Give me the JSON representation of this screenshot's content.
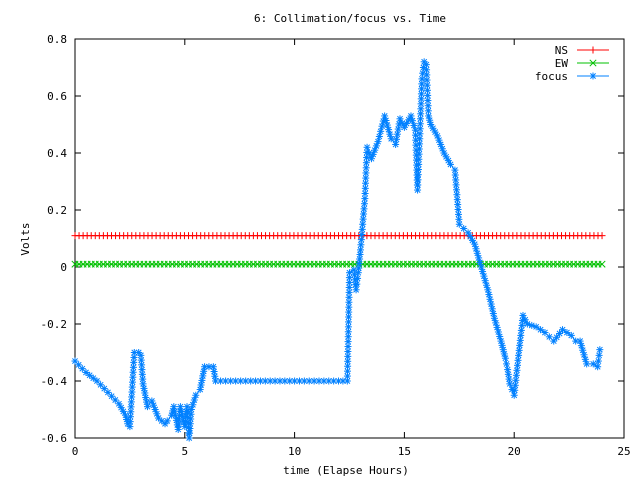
{
  "chart_data": {
    "type": "line",
    "title": "6: Collimation/focus vs. Time",
    "xlabel": "time (Elapse Hours)",
    "ylabel": "Volts",
    "xlim": [
      0,
      25
    ],
    "ylim": [
      -0.6,
      0.8
    ],
    "xticks": [
      0,
      5,
      10,
      15,
      20,
      25
    ],
    "yticks": [
      -0.6,
      -0.4,
      -0.2,
      0,
      0.2,
      0.4,
      0.6,
      0.8
    ],
    "xtick_labels": [
      "0",
      "5",
      "10",
      "15",
      "20",
      "25"
    ],
    "ytick_labels": [
      "-0.6",
      "-0.4",
      "-0.2",
      "0",
      "0.2",
      "0.4",
      "0.6",
      "0.8"
    ],
    "grid": false,
    "legend_position": "top-right",
    "series": [
      {
        "name": "NS",
        "color": "#ff0000",
        "marker": "plus",
        "x": [
          0,
          24
        ],
        "y": [
          0.11,
          0.11
        ]
      },
      {
        "name": "EW",
        "color": "#00c000",
        "marker": "cross",
        "x": [
          0,
          24
        ],
        "y": [
          0.01,
          0.01
        ]
      },
      {
        "name": "focus",
        "color": "#0080ff",
        "marker": "star",
        "x": [
          0,
          0.5,
          1.0,
          1.5,
          2.0,
          2.3,
          2.4,
          2.5,
          2.7,
          2.9,
          3.0,
          3.1,
          3.3,
          3.5,
          3.8,
          4.1,
          4.2,
          4.4,
          4.5,
          4.7,
          4.8,
          5.0,
          5.1,
          5.2,
          5.3,
          5.5,
          5.7,
          5.9,
          6.1,
          6.3,
          6.4,
          8.0,
          10.0,
          12.0,
          12.4,
          12.5,
          12.7,
          12.8,
          12.9,
          13.0,
          13.1,
          13.2,
          13.3,
          13.5,
          13.8,
          14.1,
          14.4,
          14.6,
          14.8,
          15.0,
          15.3,
          15.5,
          15.6,
          15.7,
          15.8,
          15.9,
          16.0,
          16.1,
          16.2,
          16.5,
          16.8,
          17.1,
          17.3,
          17.5,
          17.9,
          18.2,
          18.5,
          18.8,
          19.1,
          19.4,
          19.6,
          19.7,
          19.8,
          19.9,
          20.0,
          20.4,
          20.6,
          21.0,
          21.4,
          21.8,
          22.2,
          22.6,
          22.8,
          23.0,
          23.3,
          23.6,
          23.8,
          23.9
        ],
        "y": [
          -0.33,
          -0.37,
          -0.4,
          -0.44,
          -0.48,
          -0.52,
          -0.55,
          -0.56,
          -0.3,
          -0.3,
          -0.31,
          -0.41,
          -0.49,
          -0.47,
          -0.53,
          -0.55,
          -0.54,
          -0.52,
          -0.49,
          -0.57,
          -0.49,
          -0.56,
          -0.49,
          -0.6,
          -0.5,
          -0.45,
          -0.43,
          -0.35,
          -0.35,
          -0.35,
          -0.4,
          -0.4,
          -0.4,
          -0.4,
          -0.4,
          -0.02,
          -0.01,
          -0.08,
          -0.02,
          0.06,
          0.15,
          0.24,
          0.42,
          0.38,
          0.44,
          0.53,
          0.45,
          0.43,
          0.52,
          0.49,
          0.53,
          0.48,
          0.27,
          0.45,
          0.66,
          0.72,
          0.71,
          0.53,
          0.5,
          0.46,
          0.4,
          0.36,
          0.34,
          0.15,
          0.12,
          0.08,
          0.0,
          -0.08,
          -0.18,
          -0.26,
          -0.32,
          -0.36,
          -0.41,
          -0.43,
          -0.45,
          -0.17,
          -0.2,
          -0.21,
          -0.23,
          -0.26,
          -0.22,
          -0.24,
          -0.26,
          -0.26,
          -0.34,
          -0.34,
          -0.35,
          -0.29
        ]
      }
    ]
  }
}
